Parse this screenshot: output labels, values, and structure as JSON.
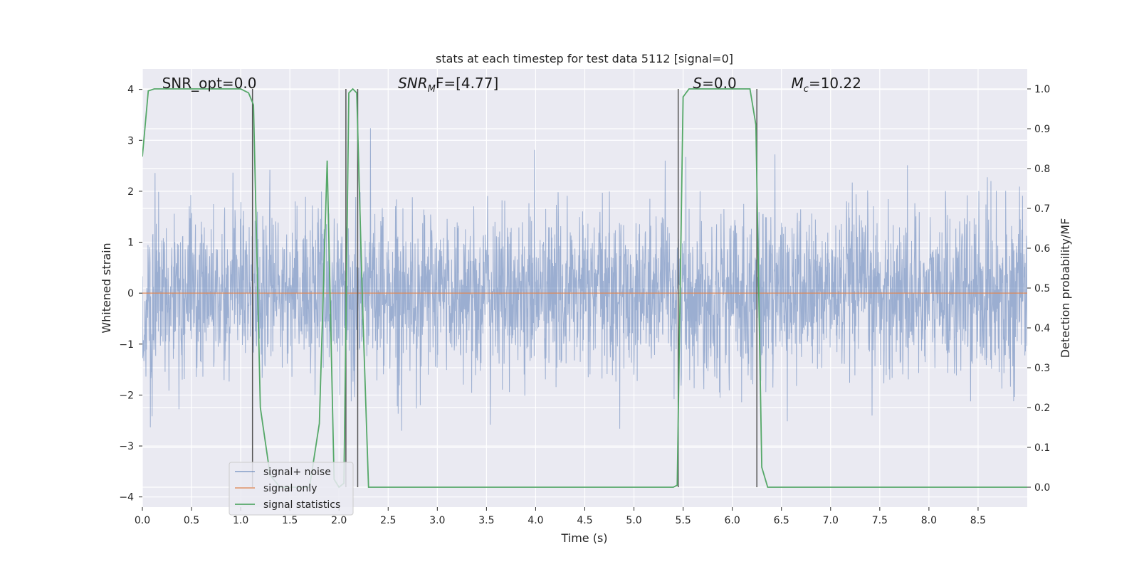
{
  "chart_data": {
    "type": "line",
    "title": "stats at each timestep for test data 5112 [signal=0]",
    "xlabel": "Time (s)",
    "ylabel_left": "Whitened strain",
    "ylabel_right": "Detection probability/MF",
    "xlim": [
      0,
      9.0
    ],
    "ylim_left": [
      -4.2,
      4.4
    ],
    "ylim_right": [
      -0.05,
      1.05
    ],
    "x_ticks": [
      0.0,
      0.5,
      1.0,
      1.5,
      2.0,
      2.5,
      3.0,
      3.5,
      4.0,
      4.5,
      5.0,
      5.5,
      6.0,
      6.5,
      7.0,
      7.5,
      8.0,
      8.5
    ],
    "x_tick_labels": [
      "0.0",
      "0.5",
      "1.0",
      "1.5",
      "2.0",
      "2.5",
      "3.0",
      "3.5",
      "4.0",
      "4.5",
      "5.0",
      "5.5",
      "6.0",
      "6.5",
      "7.0",
      "7.5",
      "8.0",
      "8.5"
    ],
    "y_left_ticks": [
      -4,
      -3,
      -2,
      -1,
      0,
      1,
      2,
      3,
      4
    ],
    "y_left_tick_labels": [
      "−4",
      "−3",
      "−2",
      "−1",
      "0",
      "1",
      "2",
      "3",
      "4"
    ],
    "y_right_ticks": [
      0.0,
      0.1,
      0.2,
      0.3,
      0.4,
      0.5,
      0.6,
      0.7,
      0.8,
      0.9,
      1.0
    ],
    "y_right_tick_labels": [
      "0.0",
      "0.1",
      "0.2",
      "0.3",
      "0.4",
      "0.5",
      "0.6",
      "0.7",
      "0.8",
      "0.9",
      "1.0"
    ],
    "grid": true,
    "legend_position": "lower-left",
    "noise_spread": 0.8,
    "series": [
      {
        "name": "signal+ noise",
        "axis": "left",
        "color": "#4c72b0",
        "style": "dense-noise"
      },
      {
        "name": "signal only",
        "axis": "left",
        "color": "#dd8452",
        "x": [
          0,
          9.0
        ],
        "y": [
          0,
          0
        ]
      },
      {
        "name": "signal statistics",
        "axis": "right",
        "color": "#55a868",
        "x": [
          0.0,
          0.06,
          0.12,
          1.0,
          1.08,
          1.13,
          1.2,
          1.3,
          1.4,
          1.5,
          1.6,
          1.7,
          1.8,
          1.88,
          1.95,
          2.0,
          2.05,
          2.1,
          2.14,
          2.18,
          2.24,
          2.3,
          2.4,
          2.6,
          5.0,
          5.4,
          5.44,
          5.5,
          5.56,
          6.0,
          6.18,
          6.24,
          6.3,
          6.36,
          6.5,
          9.0
        ],
        "y": [
          0.83,
          0.995,
          1.0,
          1.0,
          0.99,
          0.96,
          0.2,
          0.03,
          0.0,
          0.0,
          0.0,
          0.0,
          0.16,
          0.82,
          0.02,
          0.0,
          0.01,
          0.99,
          1.0,
          0.99,
          0.45,
          0.0,
          0.0,
          0.0,
          0.0,
          0.0,
          0.005,
          0.98,
          1.0,
          1.0,
          1.0,
          0.91,
          0.05,
          0.0,
          0.0,
          0.0
        ]
      }
    ],
    "vertical_lines": [
      1.12,
      2.07,
      2.19,
      5.45,
      6.25
    ],
    "annotations": [
      {
        "prefix": "SNR_opt=",
        "italic": "",
        "sub": "",
        "value": "0.0",
        "x": 0.2
      },
      {
        "prefix": "",
        "italic": "SNR",
        "sub": "M",
        "value": "F=[4.77]",
        "x": 2.6
      },
      {
        "prefix": "",
        "italic": "S",
        "sub": "",
        "value": "=0.0",
        "x": 5.6
      },
      {
        "prefix": "",
        "italic": "M",
        "sub": "c",
        "value": "=10.22",
        "x": 6.6
      }
    ]
  }
}
